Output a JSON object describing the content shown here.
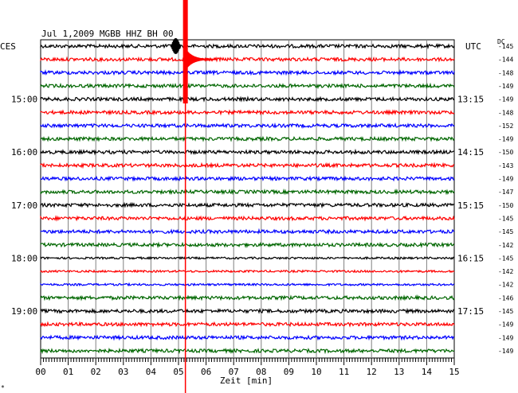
{
  "chart_data": {
    "type": "line",
    "title": "Jul 1,2009   MGBB HHZ BH  00",
    "left_zone_label": "CES",
    "right_zone_label": "UTC",
    "right_column_header": "DC",
    "xlabel": "Zeit [min]",
    "xlim": [
      0,
      15
    ],
    "x_ticks": [
      "00",
      "01",
      "02",
      "03",
      "04",
      "05",
      "06",
      "07",
      "08",
      "09",
      "10",
      "11",
      "12",
      "13",
      "14",
      "15"
    ],
    "left_time_labels": [
      {
        "trace": 4,
        "label": "15:00"
      },
      {
        "trace": 8,
        "label": "16:00"
      },
      {
        "trace": 12,
        "label": "17:00"
      },
      {
        "trace": 16,
        "label": "18:00"
      },
      {
        "trace": 20,
        "label": "19:00"
      }
    ],
    "right_time_labels": [
      {
        "trace": 4,
        "label": "13:15"
      },
      {
        "trace": 8,
        "label": "14:15"
      },
      {
        "trace": 12,
        "label": "15:15"
      },
      {
        "trace": 16,
        "label": "16:15"
      },
      {
        "trace": 20,
        "label": "17:15"
      }
    ],
    "trace_colors": [
      "#000000",
      "#ff0000",
      "#0000ff",
      "#006600"
    ],
    "dc_offsets": [
      -145,
      -144,
      -148,
      -149,
      -149,
      -148,
      -152,
      -149,
      -150,
      -143,
      -149,
      -147,
      -150,
      -145,
      -145,
      -142,
      -145,
      -142,
      -142,
      -146,
      -145,
      -149,
      -149,
      -149
    ],
    "event": {
      "trace": 1,
      "minute": 5.25,
      "peak_minute_trace0": 4.9
    },
    "footer_mark": "*"
  }
}
